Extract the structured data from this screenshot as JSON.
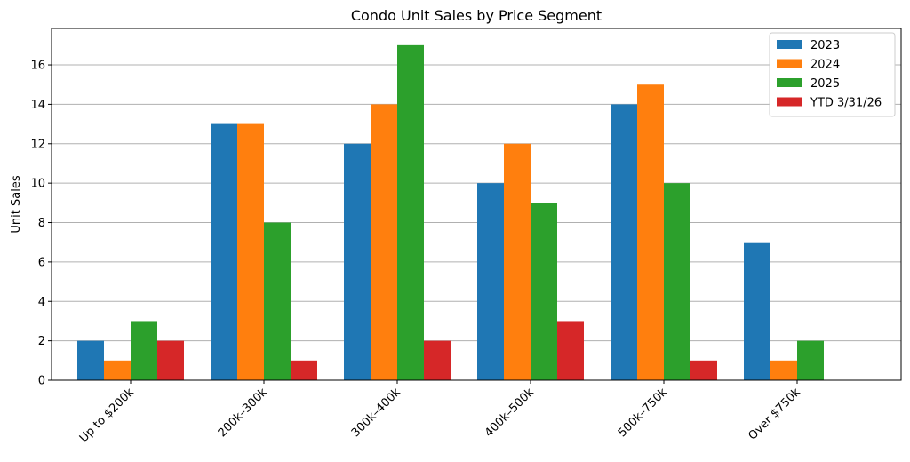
{
  "chart_data": {
    "type": "bar",
    "title": "Condo Unit Sales by Price Segment",
    "xlabel": "",
    "ylabel": "Unit Sales",
    "ylim": [
      0,
      17.85
    ],
    "yticks": [
      0,
      2,
      4,
      6,
      8,
      10,
      12,
      14,
      16
    ],
    "grid": "y-major",
    "legend_position": "top-right",
    "categories": [
      "Up to $200k",
      "200k–300k",
      "300k–400k",
      "400k–500k",
      "500k–750k",
      "Over $750k"
    ],
    "series": [
      {
        "name": "2023",
        "color": "#1f77b4",
        "values": [
          2,
          13,
          12,
          10,
          14,
          7
        ]
      },
      {
        "name": "2024",
        "color": "#ff7f0e",
        "values": [
          1,
          13,
          14,
          12,
          15,
          1
        ]
      },
      {
        "name": "2025",
        "color": "#2ca02c",
        "values": [
          3,
          8,
          17,
          9,
          10,
          2
        ]
      },
      {
        "name": "YTD 3/31/26",
        "color": "#d62728",
        "values": [
          2,
          1,
          2,
          3,
          1,
          0
        ]
      }
    ]
  }
}
